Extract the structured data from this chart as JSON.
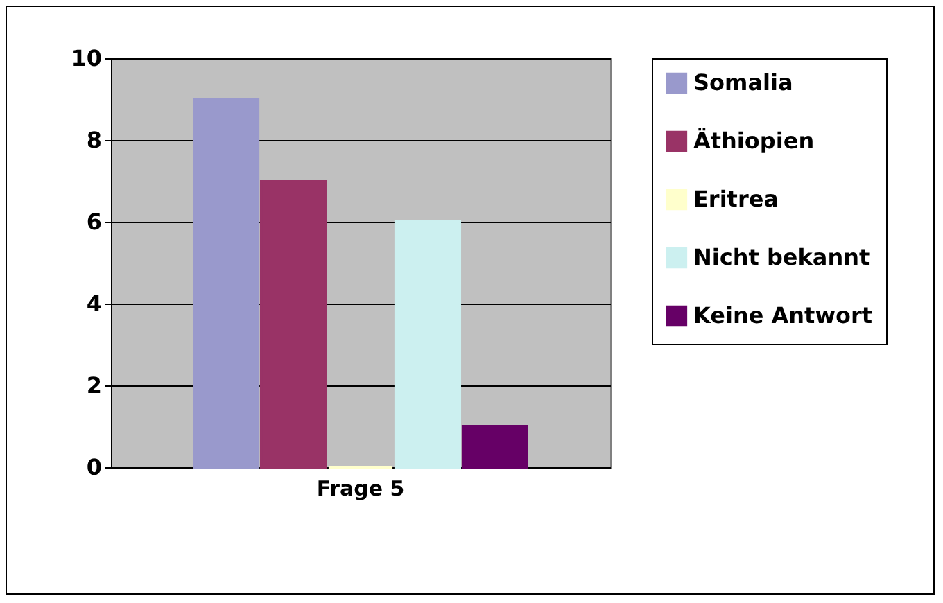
{
  "chart_data": {
    "type": "bar",
    "categories": [
      "Frage 5"
    ],
    "series": [
      {
        "name": "Somalia",
        "color": "#9999cc",
        "values": [
          9
        ]
      },
      {
        "name": "Äthiopien",
        "color": "#993366",
        "values": [
          7
        ]
      },
      {
        "name": "Eritrea",
        "color": "#ffffcc",
        "values": [
          0
        ]
      },
      {
        "name": "Nicht bekannt",
        "color": "#ccf0f0",
        "values": [
          6
        ]
      },
      {
        "name": "Keine Antwort",
        "color": "#660066",
        "values": [
          1
        ]
      }
    ],
    "ylim": [
      0,
      10
    ],
    "yticks": [
      0,
      2,
      4,
      6,
      8,
      10
    ],
    "grid": "y",
    "legend": "right"
  }
}
